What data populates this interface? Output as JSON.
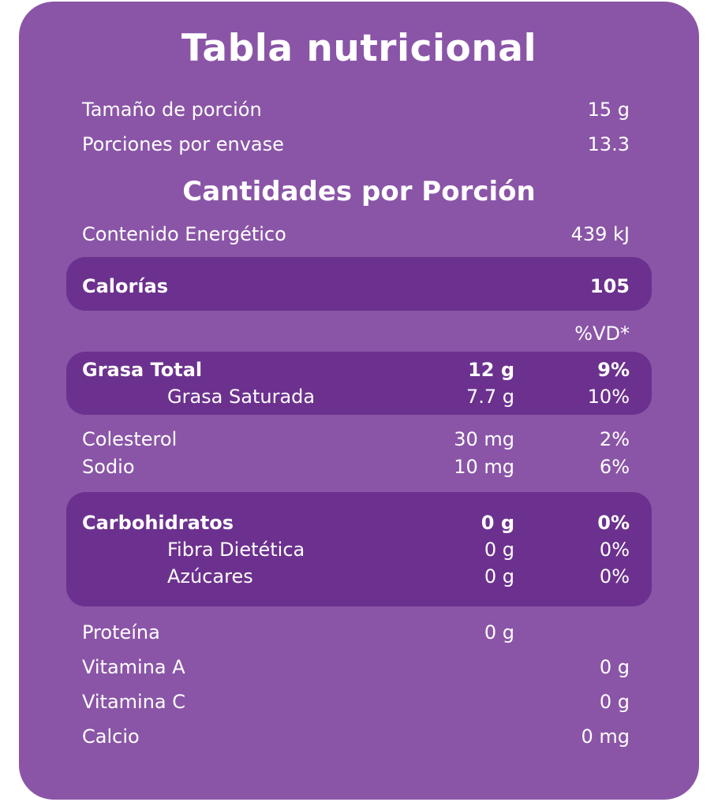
{
  "title": "Tabla nutricional",
  "serving": {
    "size_label": "Tamaño de porción",
    "size_value": "15 g",
    "per_container_label": "Porciones por envase",
    "per_container_value": "13.3"
  },
  "section_title": "Cantidades por Porción",
  "energy": {
    "label": "Contenido Energético",
    "value": "439 kJ"
  },
  "calories": {
    "label": "Calorías",
    "value": "105"
  },
  "dv_header": "%VD*",
  "fat": {
    "total": {
      "label": "Grasa Total",
      "amount": "12 g",
      "dv": "9%"
    },
    "saturated": {
      "label": "Grasa Saturada",
      "amount": "7.7 g",
      "dv": "10%"
    }
  },
  "cholesterol": {
    "label": "Colesterol",
    "amount": "30 mg",
    "dv": "2%"
  },
  "sodium": {
    "label": "Sodio",
    "amount": "10 mg",
    "dv": "6%"
  },
  "carbs": {
    "total": {
      "label": "Carbohidratos",
      "amount": "0 g",
      "dv": "0%"
    },
    "fiber": {
      "label": "Fibra Dietética",
      "amount": "0 g",
      "dv": "0%"
    },
    "sugars": {
      "label": "Azúcares",
      "amount": "0 g",
      "dv": "0%"
    }
  },
  "protein": {
    "label": "Proteína",
    "amount": "0 g"
  },
  "vitamin_a": {
    "label": "Vitamina A",
    "value": "0 g"
  },
  "vitamin_c": {
    "label": "Vitamina C",
    "value": "0 g"
  },
  "calcium": {
    "label": "Calcio",
    "value": "0 mg"
  },
  "colors": {
    "card_background": "#8a55a7",
    "highlight_band": "#6c318e",
    "text": "#ffffff"
  }
}
